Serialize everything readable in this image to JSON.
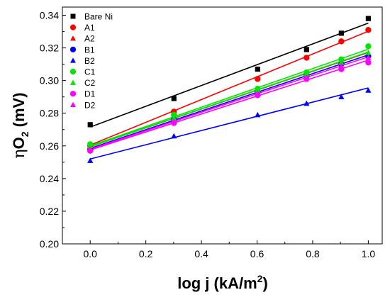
{
  "chart_data": {
    "type": "scatter",
    "xlabel": "log j (kA/m",
    "xlabel_sup": "2",
    "xlabel_end": ")",
    "ylabel_eta": "η",
    "ylabel_main": "O",
    "ylabel_sub": "2",
    "ylabel_end": " (mV)",
    "xlim": [
      -0.1,
      1.05
    ],
    "ylim": [
      0.2,
      0.345
    ],
    "xticks": [
      "0.0",
      "0.2",
      "0.4",
      "0.6",
      "0.8",
      "1.0"
    ],
    "yticks": [
      "0.20",
      "0.22",
      "0.24",
      "0.26",
      "0.28",
      "0.30",
      "0.32",
      "0.34"
    ],
    "grid": false,
    "legend_position": "top-left",
    "x": [
      0.0,
      0.301,
      0.602,
      0.778,
      0.903,
      1.0
    ],
    "series": [
      {
        "name": "Bare Ni",
        "color": "#000000",
        "marker": "square",
        "values": [
          0.273,
          0.289,
          0.307,
          0.319,
          0.329,
          0.338
        ],
        "fit": [
          0.2715,
          0.3352
        ]
      },
      {
        "name": "A1",
        "color": "#ff0000",
        "marker": "circle",
        "values": [
          0.26,
          0.281,
          0.301,
          0.314,
          0.324,
          0.331
        ],
        "fit": [
          0.2605,
          0.3302
        ]
      },
      {
        "name": "A2",
        "color": "#ff0000",
        "marker": "triangle",
        "values": [
          0.259,
          0.278,
          0.295,
          0.304,
          0.311,
          0.316
        ],
        "fit": [
          0.2595,
          0.3172
        ]
      },
      {
        "name": "B1",
        "color": "#0000ff",
        "marker": "circle",
        "values": [
          0.258,
          0.276,
          0.293,
          0.303,
          0.31,
          0.315
        ],
        "fit": [
          0.2585,
          0.3157
        ]
      },
      {
        "name": "B2",
        "color": "#0000ff",
        "marker": "triangle",
        "values": [
          0.251,
          0.266,
          0.279,
          0.286,
          0.29,
          0.294
        ],
        "fit": [
          0.252,
          0.2955
        ]
      },
      {
        "name": "C1",
        "color": "#00e600",
        "marker": "circle",
        "values": [
          0.261,
          0.279,
          0.295,
          0.305,
          0.313,
          0.321
        ],
        "fit": [
          0.26,
          0.3192
        ]
      },
      {
        "name": "C2",
        "color": "#00e600",
        "marker": "triangle",
        "values": [
          0.26,
          0.277,
          0.294,
          0.304,
          0.311,
          0.317
        ],
        "fit": [
          0.2595,
          0.3175
        ]
      },
      {
        "name": "D1",
        "color": "#ff00ff",
        "marker": "circle",
        "values": [
          0.257,
          0.274,
          0.291,
          0.301,
          0.307,
          0.311
        ],
        "fit": [
          0.2575,
          0.3125
        ]
      },
      {
        "name": "D2",
        "color": "#ff00ff",
        "marker": "triangle",
        "values": [
          0.258,
          0.275,
          0.292,
          0.302,
          0.309,
          0.314
        ],
        "fit": [
          0.258,
          0.3145
        ]
      }
    ]
  }
}
